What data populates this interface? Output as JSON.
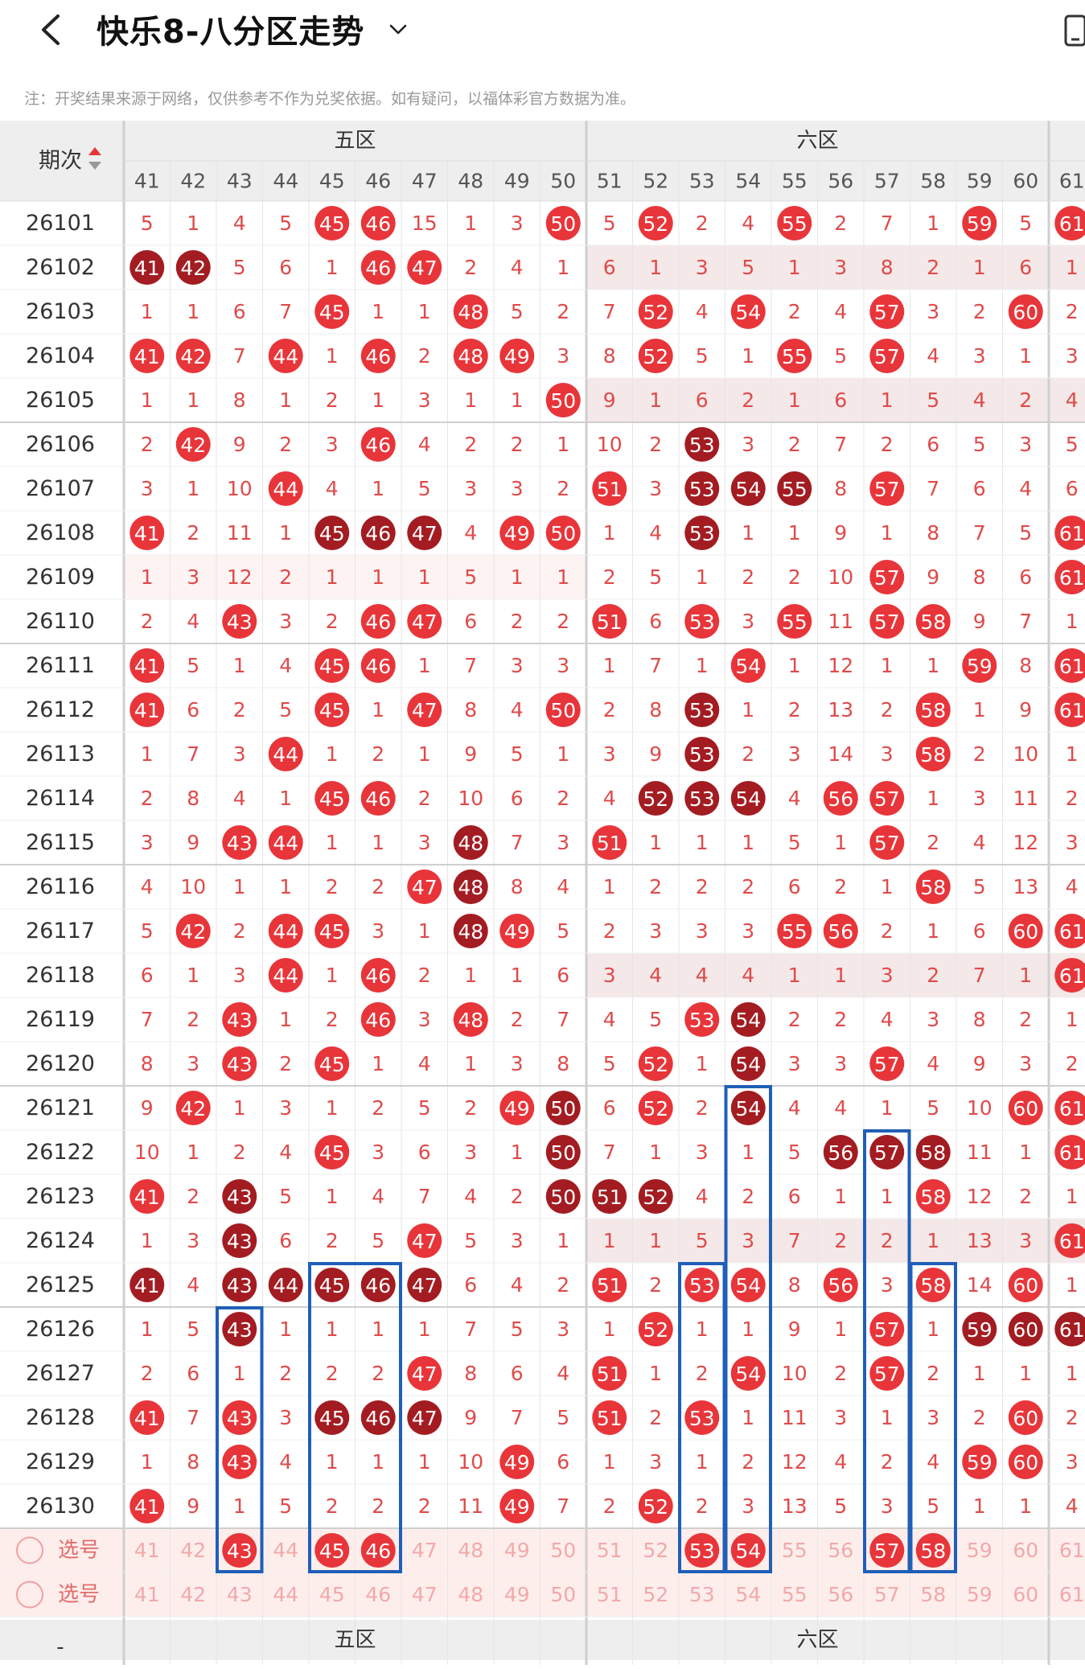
{
  "header": {
    "title": "快乐8-八分区走势",
    "back_icon": "chevron-left-icon",
    "dropdown_icon": "chevron-down-icon",
    "right_icon": "phone-icon"
  },
  "notice": "注：开奖结果来源于网络，仅供参考不作为兑奖依据。如有疑问，以福体彩官方数据为准。",
  "table": {
    "period_header": "期次",
    "zones": [
      {
        "name": "五区",
        "start": 41,
        "end": 50
      },
      {
        "name": "六区",
        "start": 51,
        "end": 60
      },
      {
        "name": "",
        "start": 61,
        "end": 61
      }
    ],
    "columns": [
      41,
      42,
      43,
      44,
      45,
      46,
      47,
      48,
      49,
      50,
      51,
      52,
      53,
      54,
      55,
      56,
      57,
      58,
      59,
      60,
      61
    ],
    "rows": [
      {
        "period": "26101",
        "cells": [
          5,
          1,
          4,
          5,
          "45r",
          "46r",
          15,
          1,
          3,
          "50r",
          5,
          "52r",
          2,
          4,
          "55r",
          2,
          7,
          1,
          "59r",
          5,
          "61r"
        ]
      },
      {
        "period": "26102",
        "cells": [
          "41d",
          "42d",
          5,
          6,
          1,
          "46r",
          "47r",
          2,
          4,
          1,
          6,
          1,
          3,
          5,
          1,
          3,
          8,
          2,
          1,
          6,
          1
        ]
      },
      {
        "period": "26103",
        "cells": [
          1,
          1,
          6,
          7,
          "45r",
          1,
          1,
          "48r",
          5,
          2,
          7,
          "52r",
          4,
          "54r",
          2,
          4,
          "57r",
          3,
          2,
          "60r",
          2
        ]
      },
      {
        "period": "26104",
        "cells": [
          "41r",
          "42r",
          7,
          "44r",
          1,
          "46r",
          2,
          "48r",
          "49r",
          3,
          8,
          "52r",
          5,
          1,
          "55r",
          5,
          "57r",
          4,
          3,
          1,
          3
        ]
      },
      {
        "period": "26105",
        "cells": [
          1,
          1,
          8,
          1,
          2,
          1,
          3,
          1,
          1,
          "50r",
          9,
          1,
          6,
          2,
          1,
          6,
          1,
          5,
          4,
          2,
          4
        ]
      },
      {
        "period": "26106",
        "cells": [
          2,
          "42r",
          9,
          2,
          3,
          "46r",
          4,
          2,
          2,
          1,
          10,
          2,
          "53d",
          3,
          2,
          7,
          2,
          6,
          5,
          3,
          5
        ]
      },
      {
        "period": "26107",
        "cells": [
          3,
          1,
          10,
          "44r",
          4,
          1,
          5,
          3,
          3,
          2,
          "51r",
          3,
          "53d",
          "54d",
          "55d",
          8,
          "57r",
          7,
          6,
          4,
          6
        ]
      },
      {
        "period": "26108",
        "cells": [
          "41r",
          2,
          11,
          1,
          "45d",
          "46d",
          "47d",
          4,
          "49r",
          "50r",
          1,
          4,
          "53d",
          1,
          1,
          9,
          1,
          8,
          7,
          5,
          "61r"
        ]
      },
      {
        "period": "26109",
        "cells": [
          1,
          3,
          12,
          2,
          1,
          1,
          1,
          5,
          1,
          1,
          2,
          5,
          1,
          2,
          2,
          10,
          "57r",
          9,
          8,
          6,
          "61r"
        ]
      },
      {
        "period": "26110",
        "cells": [
          2,
          4,
          "43r",
          3,
          2,
          "46r",
          "47r",
          6,
          2,
          2,
          "51r",
          6,
          "53r",
          3,
          "55r",
          11,
          "57r",
          "58r",
          9,
          7,
          1
        ]
      },
      {
        "period": "26111",
        "cells": [
          "41r",
          5,
          1,
          4,
          "45r",
          "46r",
          1,
          7,
          3,
          3,
          1,
          7,
          1,
          "54r",
          1,
          12,
          1,
          1,
          "59r",
          8,
          "61r"
        ]
      },
      {
        "period": "26112",
        "cells": [
          "41r",
          6,
          2,
          5,
          "45r",
          1,
          "47r",
          8,
          4,
          "50r",
          2,
          8,
          "53d",
          1,
          2,
          13,
          2,
          "58r",
          1,
          9,
          "61r"
        ]
      },
      {
        "period": "26113",
        "cells": [
          1,
          7,
          3,
          "44r",
          1,
          2,
          1,
          9,
          5,
          1,
          3,
          9,
          "53d",
          2,
          3,
          14,
          3,
          "58r",
          2,
          10,
          1
        ]
      },
      {
        "period": "26114",
        "cells": [
          2,
          8,
          4,
          1,
          "45r",
          "46r",
          2,
          10,
          6,
          2,
          4,
          "52d",
          "53d",
          "54d",
          4,
          "56r",
          "57r",
          1,
          3,
          11,
          2
        ]
      },
      {
        "period": "26115",
        "cells": [
          3,
          9,
          "43r",
          "44r",
          1,
          1,
          3,
          "48d",
          7,
          3,
          "51r",
          1,
          1,
          1,
          5,
          1,
          "57r",
          2,
          4,
          12,
          3
        ]
      },
      {
        "period": "26116",
        "cells": [
          4,
          10,
          1,
          1,
          2,
          2,
          "47r",
          "48d",
          8,
          4,
          1,
          2,
          2,
          2,
          6,
          2,
          1,
          "58r",
          5,
          13,
          4
        ]
      },
      {
        "period": "26117",
        "cells": [
          5,
          "42r",
          2,
          "44r",
          "45r",
          3,
          1,
          "48d",
          "49r",
          5,
          2,
          3,
          3,
          3,
          "55r",
          "56r",
          2,
          1,
          6,
          "60r",
          "61r"
        ]
      },
      {
        "period": "26118",
        "cells": [
          6,
          1,
          3,
          "44r",
          1,
          "46r",
          2,
          1,
          1,
          6,
          3,
          4,
          4,
          4,
          1,
          1,
          3,
          2,
          7,
          1,
          "61r"
        ]
      },
      {
        "period": "26119",
        "cells": [
          7,
          2,
          "43r",
          1,
          2,
          "46r",
          3,
          "48r",
          2,
          7,
          4,
          5,
          "53r",
          "54d",
          2,
          2,
          4,
          3,
          8,
          2,
          1
        ]
      },
      {
        "period": "26120",
        "cells": [
          8,
          3,
          "43r",
          2,
          "45r",
          1,
          4,
          1,
          3,
          8,
          5,
          "52r",
          1,
          "54d",
          3,
          3,
          "57r",
          4,
          9,
          3,
          2
        ]
      },
      {
        "period": "26121",
        "cells": [
          9,
          "42r",
          1,
          3,
          1,
          2,
          5,
          2,
          "49r",
          "50d",
          6,
          "52r",
          2,
          "54d",
          4,
          4,
          1,
          5,
          10,
          "60r",
          "61r"
        ]
      },
      {
        "period": "26122",
        "cells": [
          10,
          1,
          2,
          4,
          "45r",
          3,
          6,
          3,
          1,
          "50d",
          7,
          1,
          3,
          1,
          5,
          "56d",
          "57d",
          "58d",
          11,
          1,
          "61r"
        ]
      },
      {
        "period": "26123",
        "cells": [
          "41r",
          2,
          "43d",
          5,
          1,
          4,
          7,
          4,
          2,
          "50d",
          "51d",
          "52d",
          4,
          2,
          6,
          1,
          1,
          "58r",
          12,
          2,
          1
        ]
      },
      {
        "period": "26124",
        "cells": [
          1,
          3,
          "43d",
          6,
          2,
          5,
          "47r",
          5,
          3,
          1,
          1,
          1,
          5,
          3,
          7,
          2,
          2,
          1,
          13,
          3,
          "61r"
        ]
      },
      {
        "period": "26125",
        "cells": [
          "41d",
          4,
          "43d",
          "44d",
          "45d",
          "46d",
          "47d",
          6,
          4,
          2,
          "51r",
          2,
          "53r",
          "54r",
          8,
          "56r",
          3,
          "58r",
          14,
          "60r",
          1
        ]
      },
      {
        "period": "26126",
        "cells": [
          1,
          5,
          "43d",
          1,
          1,
          1,
          1,
          7,
          5,
          3,
          1,
          "52r",
          1,
          1,
          9,
          1,
          "57r",
          1,
          "59d",
          "60d",
          "61d"
        ]
      },
      {
        "period": "26127",
        "cells": [
          2,
          6,
          1,
          2,
          2,
          2,
          "47r",
          8,
          6,
          4,
          "51r",
          1,
          2,
          "54r",
          10,
          2,
          "57r",
          2,
          1,
          1,
          1
        ]
      },
      {
        "period": "26128",
        "cells": [
          "41r",
          7,
          "43r",
          3,
          "45d",
          "46d",
          "47d",
          9,
          7,
          5,
          "51r",
          2,
          "53r",
          1,
          11,
          3,
          1,
          3,
          2,
          "60r",
          2
        ]
      },
      {
        "period": "26129",
        "cells": [
          1,
          8,
          "43r",
          4,
          1,
          1,
          1,
          10,
          "49r",
          6,
          1,
          3,
          1,
          2,
          12,
          4,
          2,
          4,
          "59r",
          "60r",
          3
        ]
      },
      {
        "period": "26130",
        "cells": [
          "41r",
          9,
          1,
          5,
          2,
          2,
          2,
          11,
          "49r",
          7,
          2,
          "52r",
          2,
          3,
          13,
          5,
          3,
          5,
          1,
          1,
          4
        ]
      }
    ],
    "select_rows": [
      {
        "label": "选号",
        "selected": [
          43,
          45,
          46,
          53,
          54,
          57,
          58
        ]
      },
      {
        "label": "选号",
        "selected": []
      }
    ],
    "footer_zones": [
      "五区",
      "六区"
    ],
    "footer_dash": "-"
  },
  "colors": {
    "red_ball": "#e8353a",
    "dark_ball": "#a31c21",
    "number_text": "#e04a4a",
    "header_bg": "#eeeeee",
    "highlight_box": "#1f5fb8",
    "select_bg": "#fdeeec"
  }
}
